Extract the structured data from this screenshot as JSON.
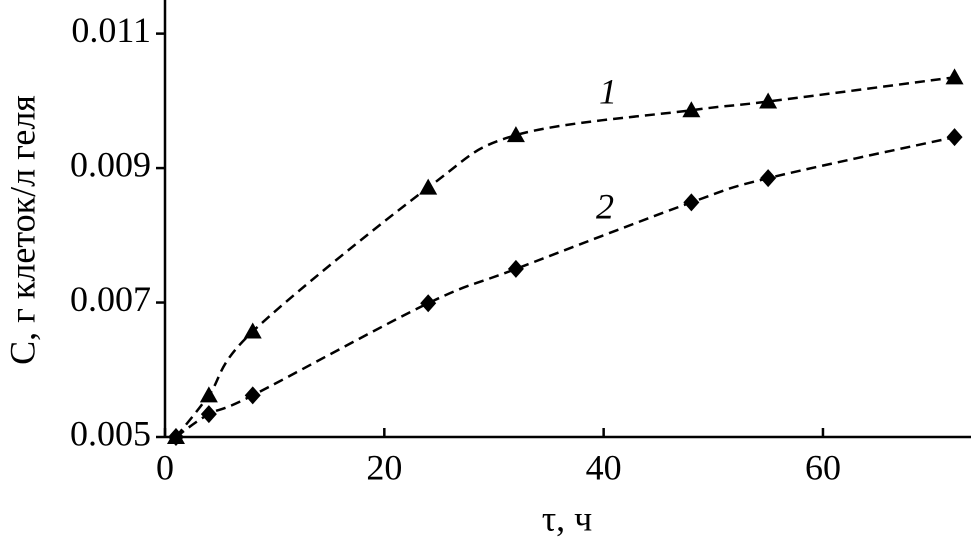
{
  "chart_data": {
    "type": "scatter",
    "xlabel": "τ, ч",
    "ylabel": "C, г клеток/л геля",
    "xlim": [
      0,
      73.5
    ],
    "xticks": [
      0,
      20,
      40,
      60
    ],
    "ylim": [
      0.005,
      0.0115
    ],
    "yticks": [
      0.005,
      0.007,
      0.009,
      0.011
    ],
    "series": [
      {
        "name": "1",
        "color": "#000000",
        "marker": "triangle",
        "x": [
          1,
          4,
          8,
          24,
          32,
          48,
          55,
          72
        ],
        "values": [
          0.005,
          0.00562,
          0.00657,
          0.00871,
          0.00949,
          0.00986,
          0.00999,
          0.01035
        ]
      },
      {
        "name": "2",
        "color": "#000000",
        "marker": "diamond",
        "x": [
          1,
          4,
          8,
          24,
          32,
          48,
          55,
          72
        ],
        "values": [
          0.005,
          0.00534,
          0.00562,
          0.00699,
          0.0075,
          0.00849,
          0.00885,
          0.00946
        ]
      }
    ]
  }
}
